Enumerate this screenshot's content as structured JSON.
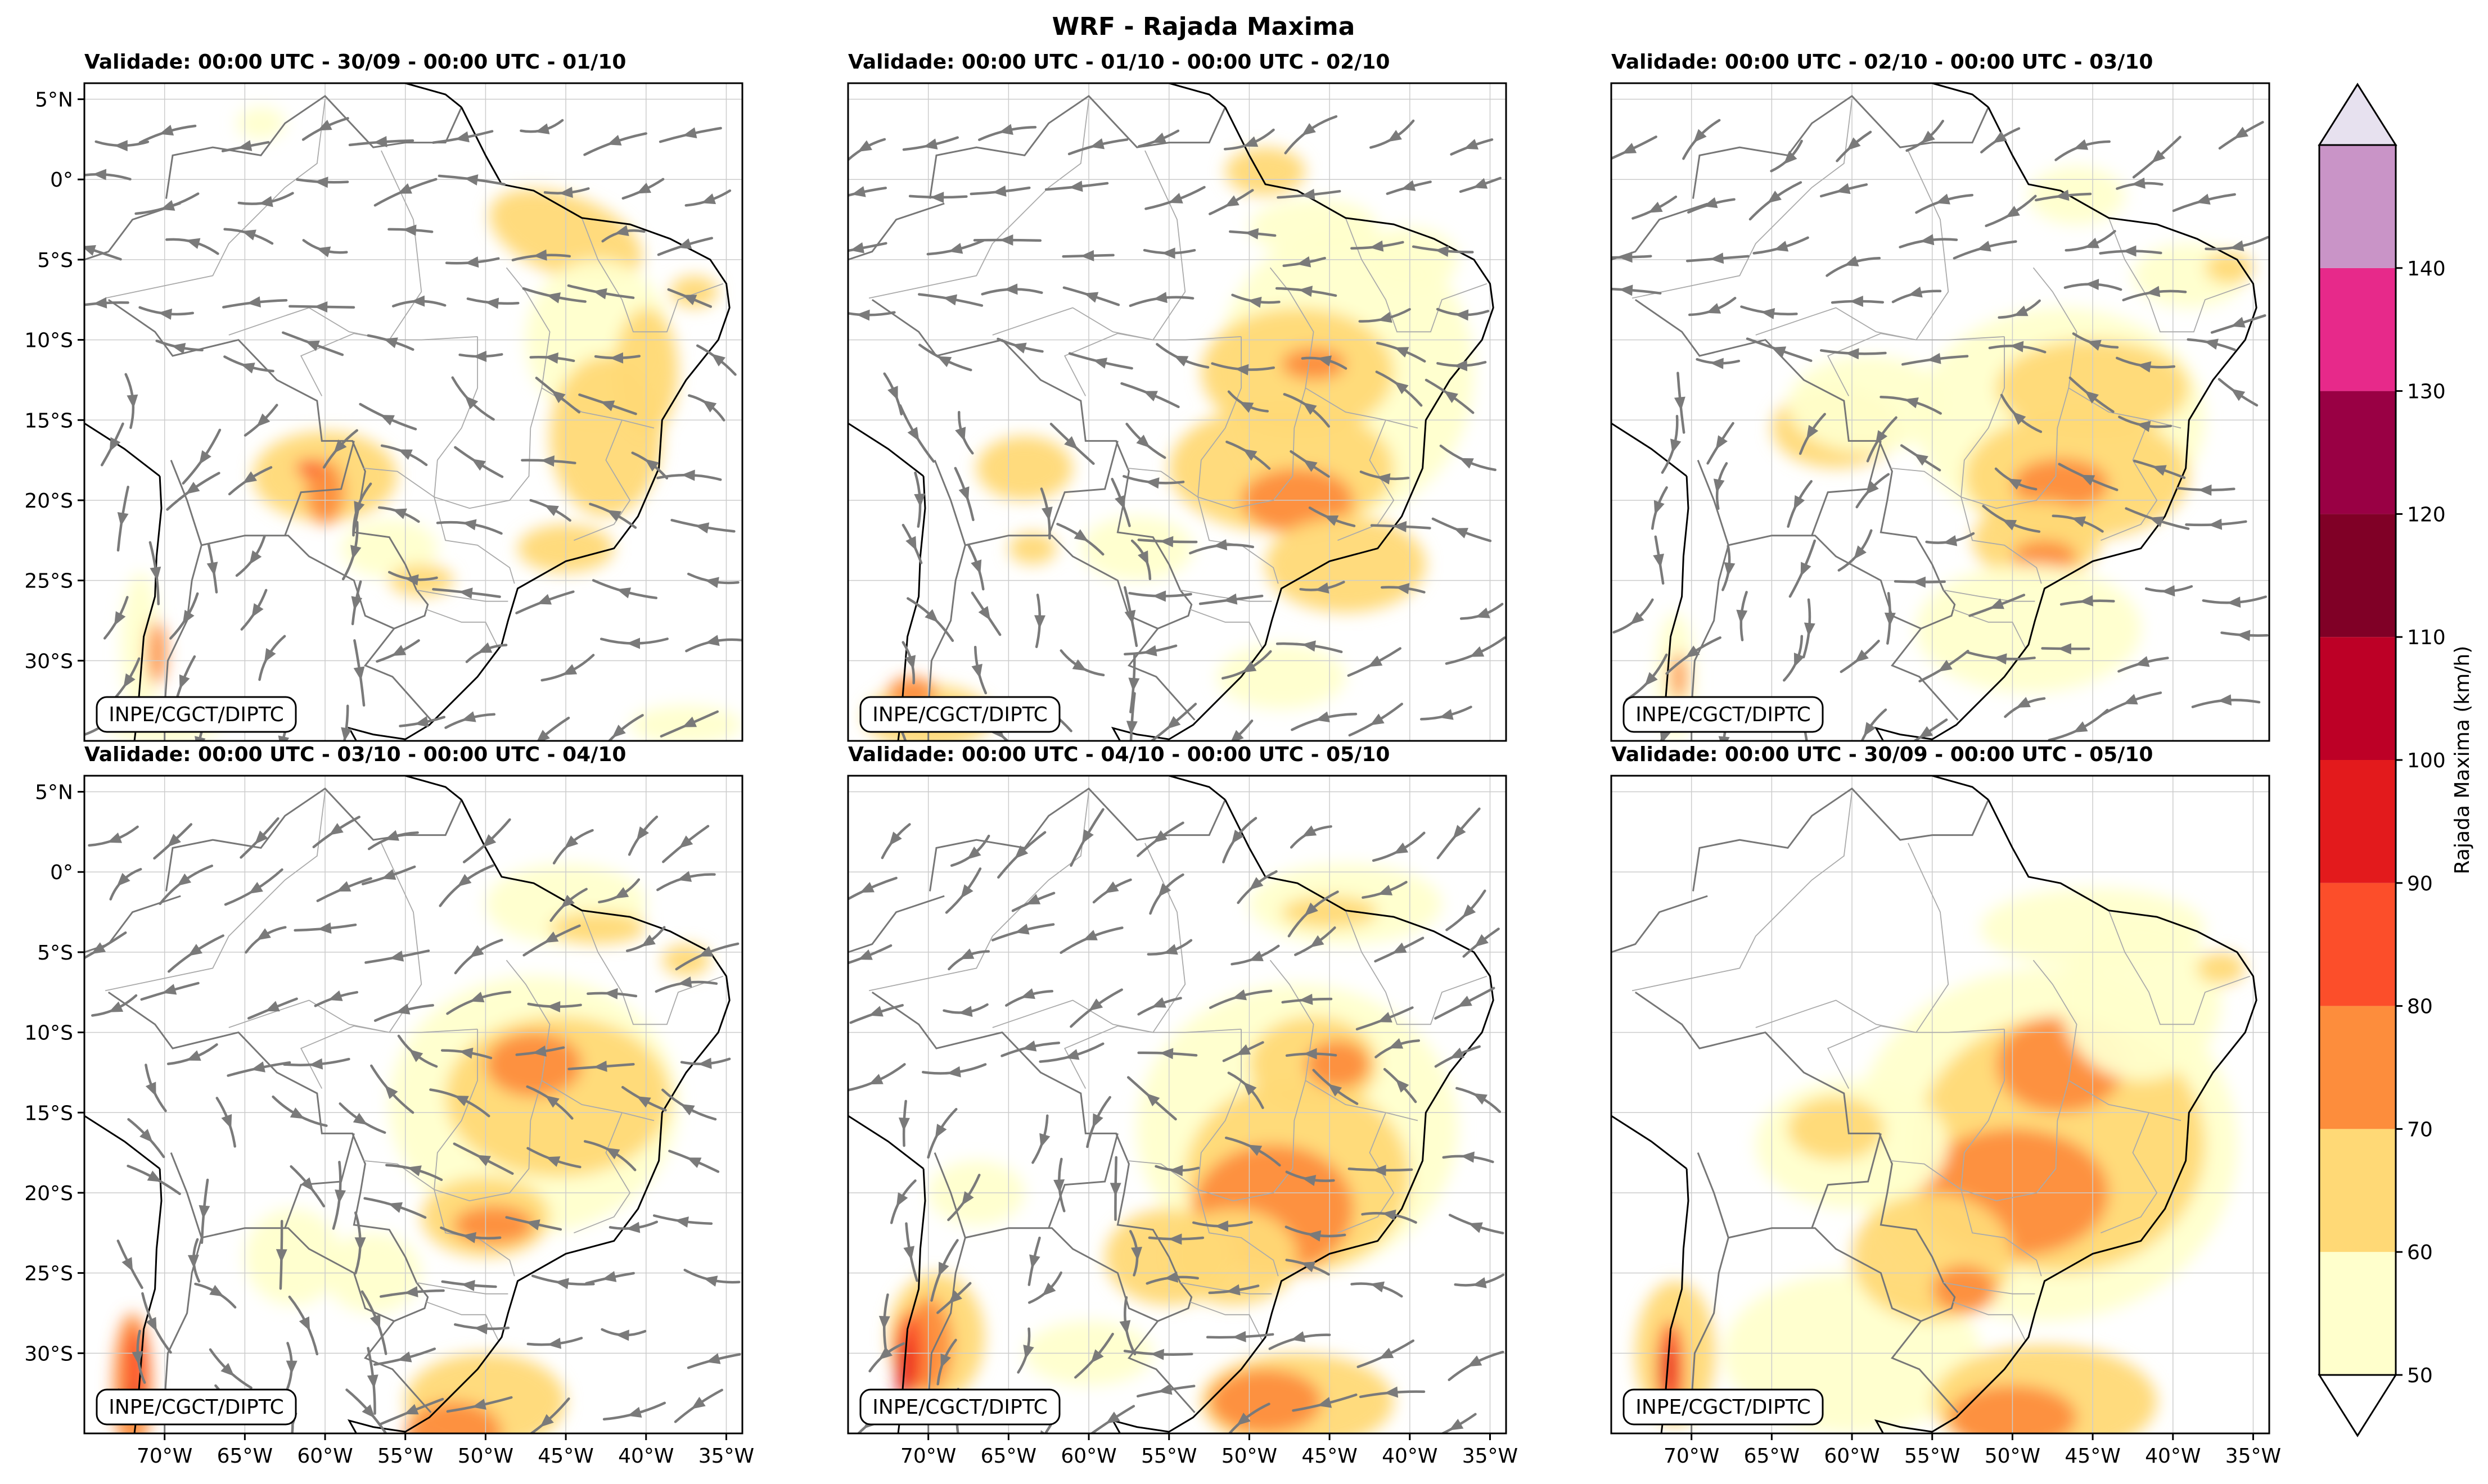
{
  "title": "WRF - Rajada Maxima",
  "credit": "INPE/CGCT/DIPTC",
  "lat_labels": [
    "5°N",
    "0°",
    "5°S",
    "10°S",
    "15°S",
    "20°S",
    "25°S",
    "30°S"
  ],
  "lat_values": [
    5,
    0,
    -5,
    -10,
    -15,
    -20,
    -25,
    -30
  ],
  "lon_labels": [
    "70°W",
    "65°W",
    "60°W",
    "55°W",
    "50°W",
    "45°W",
    "40°W",
    "35°W"
  ],
  "lon_values": [
    -70,
    -65,
    -60,
    -55,
    -50,
    -45,
    -40,
    -35
  ],
  "extent": {
    "lon_min": -75,
    "lon_max": -34,
    "lat_min": -35,
    "lat_max": 6
  },
  "panels": [
    {
      "title": "Validade: 00:00 UTC - 30/09 - 00:00 UTC - 01/10",
      "streamlines": true
    },
    {
      "title": "Validade: 00:00 UTC - 01/10 - 00:00 UTC - 02/10",
      "streamlines": true
    },
    {
      "title": "Validade: 00:00 UTC - 02/10 - 00:00 UTC - 03/10",
      "streamlines": true
    },
    {
      "title": "Validade: 00:00 UTC - 03/10 - 00:00 UTC - 04/10",
      "streamlines": true
    },
    {
      "title": "Validade: 00:00 UTC - 04/10 - 00:00 UTC - 05/10",
      "streamlines": true
    },
    {
      "title": "Validade: 00:00 UTC - 30/09 - 00:00 UTC - 05/10",
      "streamlines": false
    }
  ],
  "colorbar": {
    "label": "Rajada Maxima (km/h)",
    "ticks": [
      "50",
      "60",
      "70",
      "80",
      "90",
      "100",
      "110",
      "120",
      "130",
      "140"
    ],
    "colors": [
      "#ffffcc",
      "#ffd976",
      "#fd8d3c",
      "#fc4e2a",
      "#e31a1c",
      "#bd0026",
      "#800026",
      "#990044",
      "#e7298a",
      "#c994c7"
    ],
    "over_color": "#e7e1ef",
    "under_color": "#ffffff"
  },
  "colors": {
    "streamline": "#7a7a7a",
    "coast": "#000000",
    "border": "#777777",
    "grid": "#cccccc"
  }
}
